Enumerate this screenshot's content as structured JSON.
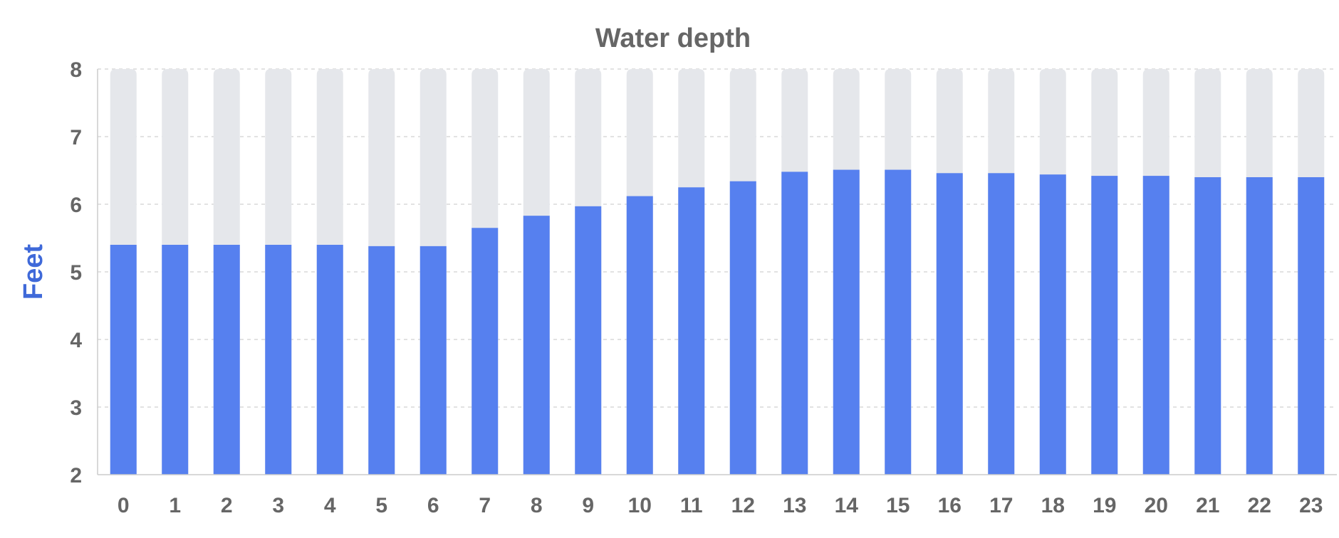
{
  "chart_data": {
    "type": "bar",
    "title": "Water depth",
    "xlabel": "",
    "ylabel": "Feet",
    "categories": [
      "0",
      "1",
      "2",
      "3",
      "4",
      "5",
      "6",
      "7",
      "8",
      "9",
      "10",
      "11",
      "12",
      "13",
      "14",
      "15",
      "16",
      "17",
      "18",
      "19",
      "20",
      "21",
      "22",
      "23"
    ],
    "values": [
      5.4,
      5.4,
      5.4,
      5.4,
      5.4,
      5.38,
      5.38,
      5.65,
      5.83,
      5.97,
      6.12,
      6.25,
      6.34,
      6.48,
      6.51,
      6.51,
      6.46,
      6.46,
      6.44,
      6.42,
      6.42,
      6.4,
      6.4,
      6.4
    ],
    "ylim": [
      2,
      8
    ],
    "yticks": [
      "2",
      "3",
      "4",
      "5",
      "6",
      "7",
      "8"
    ],
    "grid": true,
    "legend": "none",
    "colors": {
      "bar": "#5680ef",
      "background_bar": "#e5e7eb",
      "ylabel": "#3f69d9",
      "text": "#666666"
    }
  }
}
